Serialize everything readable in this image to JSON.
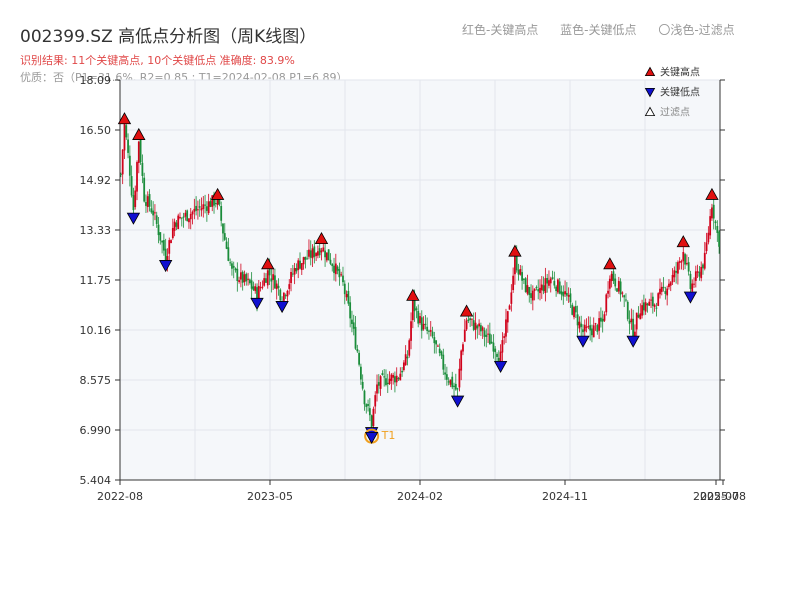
{
  "header": {
    "title": "002399.SZ 高低点分析图（周K线图）",
    "legend_top": [
      "红色-关键高点",
      "蓝色-关键低点",
      "〇浅色-过滤点"
    ],
    "result_text": "识别结果: 11个关键高点, 10个关键低点  准确度: 83.9%",
    "quality_text": "优质：否（P1=31.6%, R2=0.85 ; T1=2024-02-08 P1=6.89）"
  },
  "chart_data": {
    "type": "candlestick",
    "title": "002399.SZ 高低点分析图（周K线图）",
    "ylim": [
      5.404,
      18.09
    ],
    "y_ticks": [
      "18.09",
      "16.50",
      "14.92",
      "13.33",
      "11.75",
      "10.16",
      "8.575",
      "6.990",
      "5.404"
    ],
    "x_ticks": [
      "2022-08",
      "2023-05",
      "2024-02",
      "2024-11",
      "2025-07",
      "2025-08"
    ],
    "x_range": [
      "2022-08",
      "2025-08"
    ],
    "grid": true,
    "legend_position": "top-right",
    "legend": [
      "关键高点",
      "关键低点",
      "过滤点"
    ],
    "colors": {
      "up": "#d0021b",
      "down": "#1a8c3a",
      "high_marker": "#e01010",
      "low_marker": "#1010d0",
      "t1": "#f0a020"
    },
    "price_path": [
      [
        0,
        15.1
      ],
      [
        2,
        16.7
      ],
      [
        5,
        15.2
      ],
      [
        7,
        14.0
      ],
      [
        10,
        16.2
      ],
      [
        13,
        14.4
      ],
      [
        18,
        13.9
      ],
      [
        25,
        12.5
      ],
      [
        30,
        13.6
      ],
      [
        40,
        13.9
      ],
      [
        50,
        14.2
      ],
      [
        54,
        14.3
      ],
      [
        57,
        13.3
      ],
      [
        62,
        12.0
      ],
      [
        72,
        11.6
      ],
      [
        76,
        11.3
      ],
      [
        82,
        12.0
      ],
      [
        86,
        11.7
      ],
      [
        90,
        11.2
      ],
      [
        98,
        12.2
      ],
      [
        105,
        12.5
      ],
      [
        112,
        12.8
      ],
      [
        118,
        12.3
      ],
      [
        124,
        11.6
      ],
      [
        128,
        10.6
      ],
      [
        132,
        9.5
      ],
      [
        136,
        8.0
      ],
      [
        140,
        7.2
      ],
      [
        143,
        8.4
      ],
      [
        148,
        8.6
      ],
      [
        155,
        8.7
      ],
      [
        160,
        9.3
      ],
      [
        163,
        11.0
      ],
      [
        168,
        10.3
      ],
      [
        174,
        9.9
      ],
      [
        182,
        8.7
      ],
      [
        188,
        8.2
      ],
      [
        190,
        9.5
      ],
      [
        193,
        10.5
      ],
      [
        200,
        10.2
      ],
      [
        208,
        9.7
      ],
      [
        212,
        9.3
      ],
      [
        216,
        10.6
      ],
      [
        220,
        12.4
      ],
      [
        225,
        11.6
      ],
      [
        230,
        11.2
      ],
      [
        240,
        11.8
      ],
      [
        248,
        11.3
      ],
      [
        254,
        10.6
      ],
      [
        258,
        10.1
      ],
      [
        264,
        10.2
      ],
      [
        269,
        10.4
      ],
      [
        273,
        12.0
      ],
      [
        280,
        11.3
      ],
      [
        286,
        10.1
      ],
      [
        290,
        10.9
      ],
      [
        298,
        11.0
      ],
      [
        304,
        11.5
      ],
      [
        310,
        12.0
      ],
      [
        314,
        12.7
      ],
      [
        318,
        11.5
      ],
      [
        322,
        11.9
      ],
      [
        326,
        12.4
      ],
      [
        328,
        13.3
      ],
      [
        330,
        14.2
      ],
      [
        333,
        13.2
      ],
      [
        334,
        13.0
      ]
    ],
    "key_highs": [
      {
        "t": 2,
        "price": 16.6
      },
      {
        "t": 10,
        "price": 16.1
      },
      {
        "t": 54,
        "price": 14.2
      },
      {
        "t": 82,
        "price": 12.0
      },
      {
        "t": 112,
        "price": 12.8
      },
      {
        "t": 163,
        "price": 11.0
      },
      {
        "t": 193,
        "price": 10.5
      },
      {
        "t": 220,
        "price": 12.4
      },
      {
        "t": 273,
        "price": 12.0
      },
      {
        "t": 314,
        "price": 12.7
      },
      {
        "t": 330,
        "price": 14.2
      }
    ],
    "key_lows": [
      {
        "t": 7,
        "price": 14.0
      },
      {
        "t": 25,
        "price": 12.5
      },
      {
        "t": 76,
        "price": 11.3
      },
      {
        "t": 90,
        "price": 11.2
      },
      {
        "t": 140,
        "price": 7.2
      },
      {
        "t": 188,
        "price": 8.2
      },
      {
        "t": 212,
        "price": 9.3
      },
      {
        "t": 258,
        "price": 10.1
      },
      {
        "t": 286,
        "price": 10.1
      },
      {
        "t": 318,
        "price": 11.5
      }
    ],
    "t1_marker": {
      "t": 140,
      "price": 6.89,
      "label": "T1"
    }
  }
}
